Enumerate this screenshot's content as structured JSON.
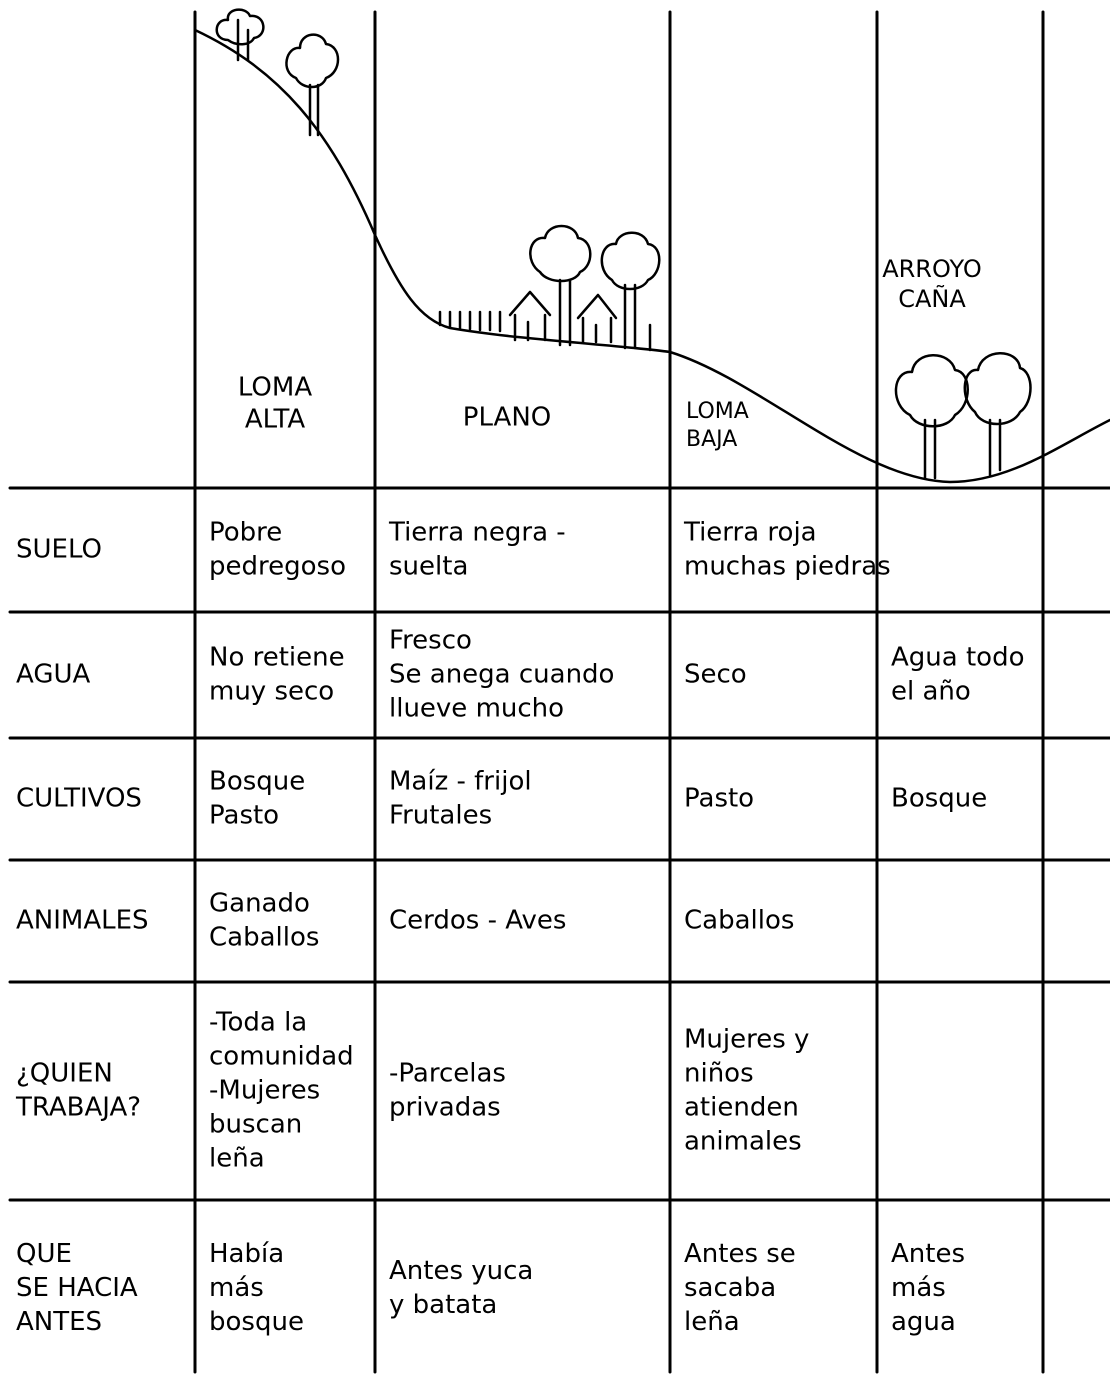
{
  "zones": [
    {
      "lines": [
        "LOMA",
        "ALTA"
      ]
    },
    {
      "lines": [
        "PLANO"
      ]
    },
    {
      "lines": [
        "LOMA",
        "BAJA"
      ]
    },
    {
      "lines": [
        "ARROYO",
        "CAÑA"
      ]
    }
  ],
  "rows": [
    {
      "label": [
        "SUELO"
      ],
      "cells": [
        [
          "Pobre",
          "pedregoso"
        ],
        [
          "Tierra negra -",
          "suelta"
        ],
        [
          "Tierra roja",
          "muchas piedras"
        ],
        null
      ]
    },
    {
      "label": [
        "AGUA"
      ],
      "cells": [
        [
          "No retiene",
          "muy seco"
        ],
        [
          "Fresco",
          "Se anega cuando",
          "llueve mucho"
        ],
        [
          "Seco"
        ],
        [
          "Agua todo",
          "el año"
        ]
      ]
    },
    {
      "label": [
        "CULTIVOS"
      ],
      "cells": [
        [
          "Bosque",
          "Pasto"
        ],
        [
          "Maíz - frijol",
          "Frutales"
        ],
        [
          "Pasto"
        ],
        [
          "Bosque"
        ]
      ]
    },
    {
      "label": [
        "ANIMALES"
      ],
      "cells": [
        [
          "Ganado",
          "Caballos"
        ],
        [
          "Cerdos - Aves"
        ],
        [
          "Caballos"
        ],
        null
      ]
    },
    {
      "label": [
        "¿QUIEN",
        "TRABAJA?"
      ],
      "cells": [
        [
          "-Toda la",
          "comunidad",
          "-Mujeres",
          "buscan",
          "leña"
        ],
        [
          "-Parcelas",
          "privadas"
        ],
        [
          "Mujeres y",
          "niños",
          "atienden",
          "animales"
        ],
        null
      ]
    },
    {
      "label": [
        "QUE",
        "SE HACIA",
        "ANTES"
      ],
      "cells": [
        [
          "Había",
          "más",
          "bosque"
        ],
        [
          "Antes yuca",
          "y batata"
        ],
        [
          "Antes se",
          "sacaba",
          "leña"
        ],
        [
          "Antes",
          "más",
          "agua"
        ]
      ]
    }
  ]
}
